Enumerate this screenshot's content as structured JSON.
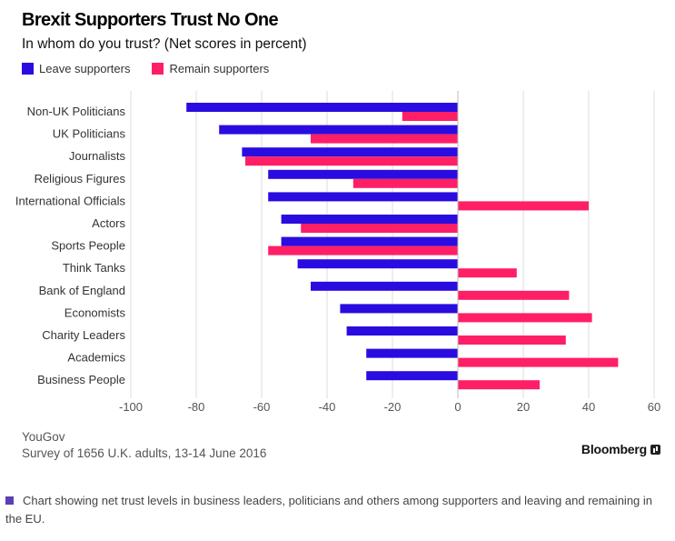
{
  "title": "Brexit Supporters Trust No One",
  "subtitle": "In whom do you trust? (Net scores in percent)",
  "legend": {
    "leave": "Leave supporters",
    "remain": "Remain supporters"
  },
  "source": "YouGov",
  "note": "Survey of 1656 U.K. adults, 13-14 June 2016",
  "brand": "Bloomberg",
  "caption": "Chart showing net trust levels in business leaders, politicians and others among supporters and leaving and remaining in the EU.",
  "colors": {
    "leave": "#2a0ce0",
    "remain": "#ff1f66"
  },
  "chart_data": {
    "type": "bar",
    "orientation": "horizontal",
    "categories": [
      "Non-UK Politicians",
      "UK Politicians",
      "Journalists",
      "Religious Figures",
      "International Officials",
      "Actors",
      "Sports People",
      "Think Tanks",
      "Bank of England",
      "Economists",
      "Charity Leaders",
      "Academics",
      "Business People"
    ],
    "series": [
      {
        "name": "Leave supporters",
        "values": [
          -83,
          -73,
          -66,
          -58,
          -58,
          -54,
          -54,
          -49,
          -45,
          -36,
          -34,
          -28,
          -28
        ]
      },
      {
        "name": "Remain supporters",
        "values": [
          -17,
          -45,
          -65,
          -32,
          40,
          -48,
          -58,
          18,
          34,
          41,
          33,
          49,
          25
        ]
      }
    ],
    "xticks": [
      -100,
      -80,
      -60,
      -40,
      -20,
      0,
      20,
      40,
      60
    ],
    "xlim": [
      -100,
      60
    ],
    "grid": true,
    "legend_position": "top-left"
  }
}
